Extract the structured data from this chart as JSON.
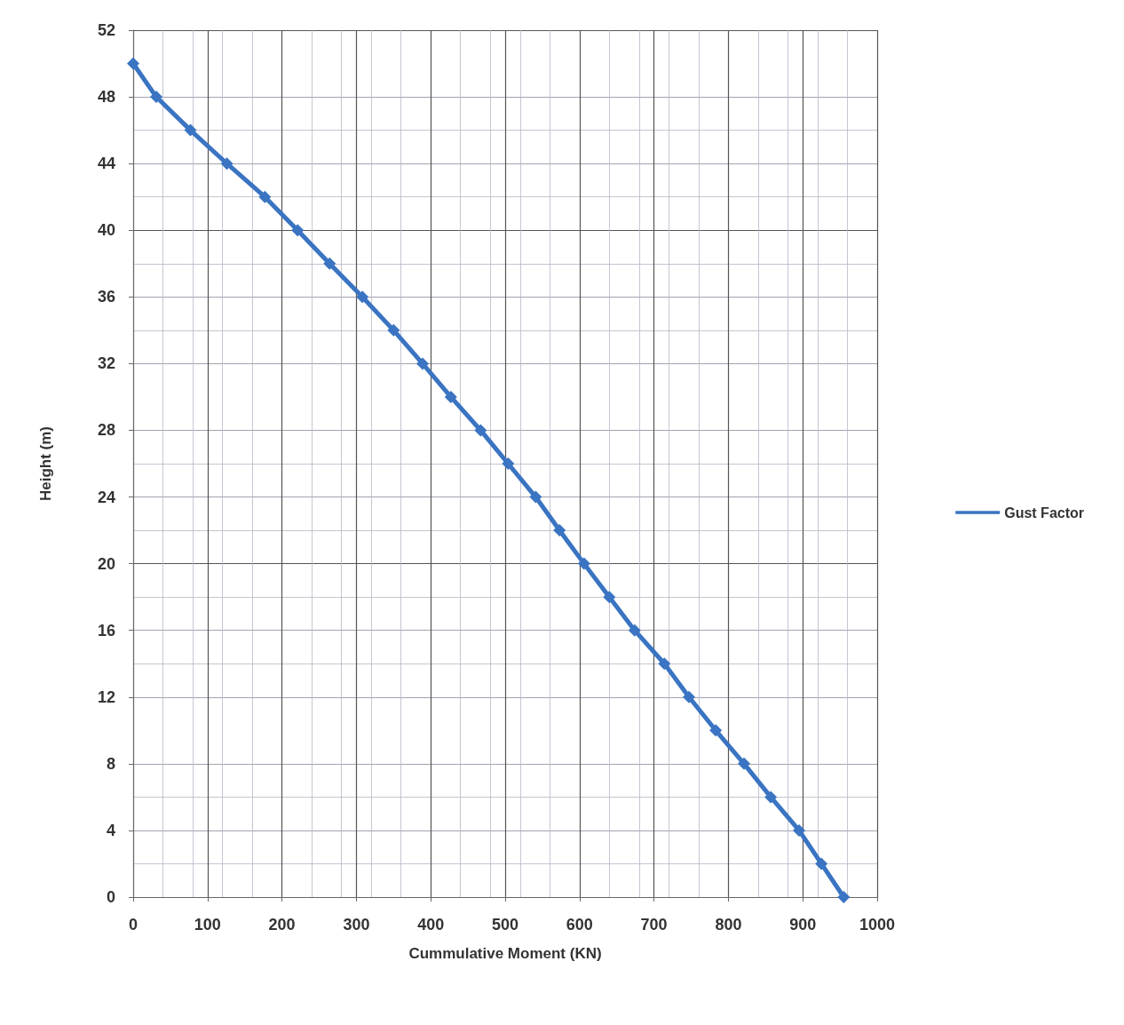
{
  "chart_data": {
    "type": "line",
    "xlabel": "Cummulative Moment (KN)",
    "ylabel": "Height (m)",
    "series": [
      {
        "name": "Gust Factor",
        "color": "#3a74c2",
        "x": [
          0,
          31,
          77,
          126,
          177,
          221,
          264,
          308,
          350,
          389,
          427,
          467,
          504,
          541,
          573,
          606,
          640,
          674,
          714,
          747,
          783,
          821,
          857,
          895,
          925,
          955
        ],
        "values": [
          50,
          48,
          46,
          44,
          42,
          40,
          38,
          36,
          34,
          32,
          30,
          28,
          26,
          24,
          22,
          20,
          18,
          16,
          14,
          12,
          10,
          8,
          6,
          4,
          2,
          0
        ]
      }
    ],
    "xlim": [
      0,
      1000
    ],
    "xticks": [
      0,
      100,
      200,
      300,
      400,
      500,
      600,
      700,
      800,
      900,
      1000
    ],
    "ylim": [
      0,
      52
    ],
    "yticks": [
      0,
      4,
      8,
      12,
      16,
      20,
      24,
      28,
      32,
      36,
      40,
      44,
      48,
      52
    ],
    "grid": true,
    "legend": "right",
    "marker": "diamond",
    "line_style": "solid"
  }
}
